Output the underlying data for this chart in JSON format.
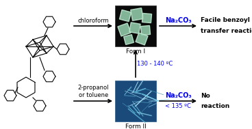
{
  "bg_color": "#ffffff",
  "figsize": [
    3.68,
    1.89
  ],
  "dpi": 100,
  "blue_color": "#0000ee",
  "text_color": "black",
  "form1_label": "Form I",
  "form2_label": "Form II",
  "chloroform_label": "chloroform",
  "solvent2_label": "2-propanol\nor toluene",
  "temp_label": "130 - 140 ºC",
  "na2co3_label1": "Na₂CO₃",
  "na2co3_label2": "Na₂CO₃",
  "temp2_label": "< 135 ºC",
  "result1_line1": "Facile benzoyl",
  "result1_line2": "transfer reaction",
  "result2_line1": "No",
  "result2_line2": "reaction",
  "mol_lw": 0.8,
  "arrow_lw": 1.2,
  "fontsize_label": 6.0,
  "fontsize_form": 6.5,
  "fontsize_result": 6.5,
  "fontsize_na2co3": 7.0,
  "fontsize_temp": 6.0
}
